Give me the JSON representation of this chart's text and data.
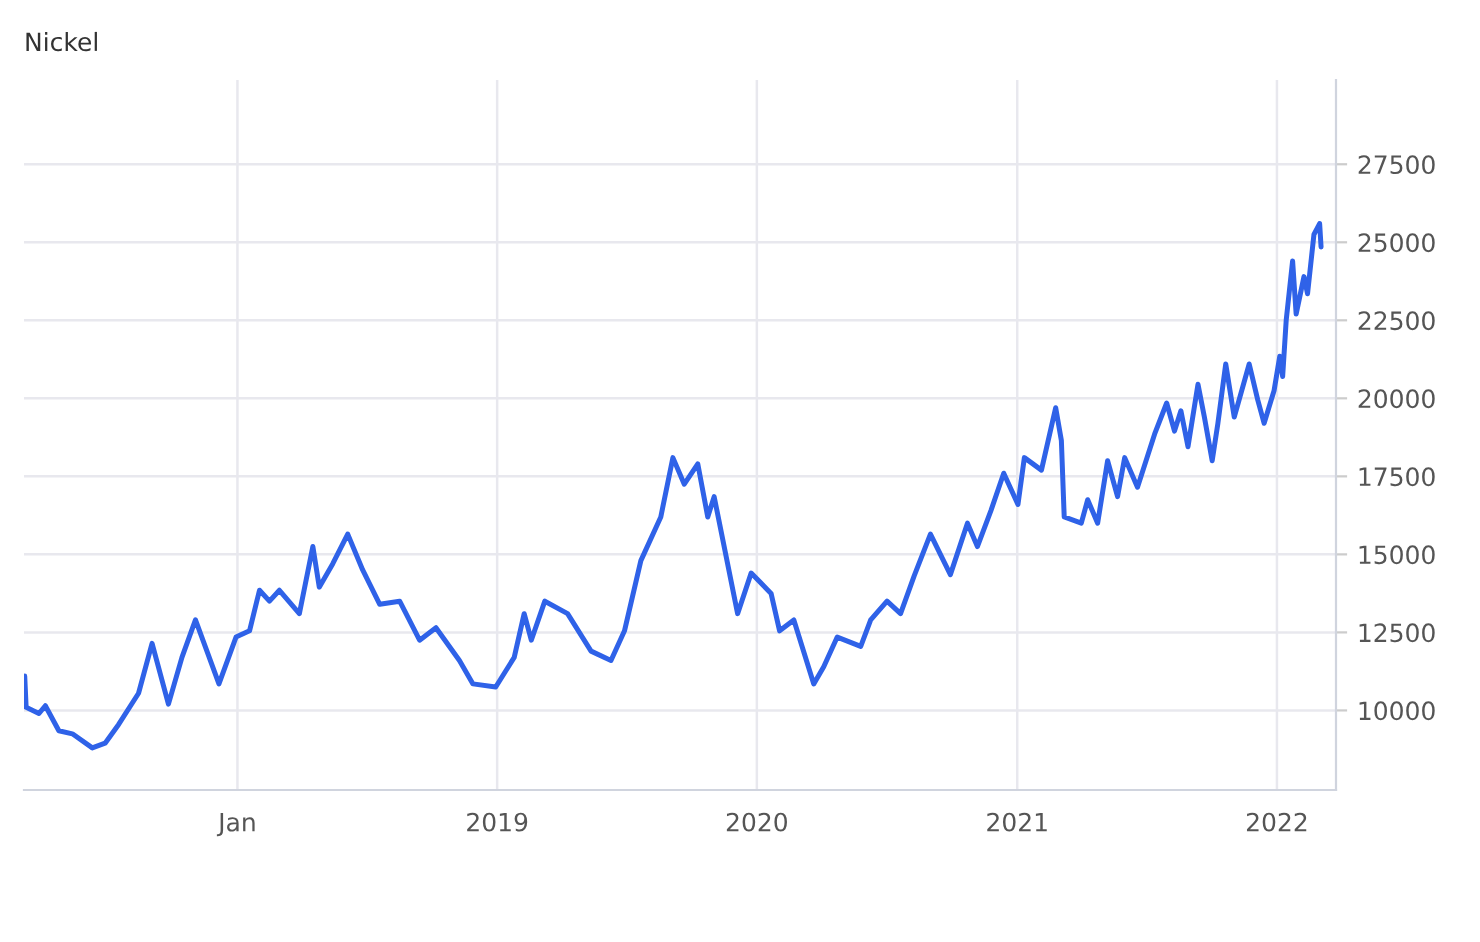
{
  "chart_data": {
    "type": "line",
    "title": "Nickel",
    "x": [
      "2017-03-08",
      "2017-03-10",
      "2017-03-28",
      "2017-04-06",
      "2017-04-25",
      "2017-05-14",
      "2017-06-11",
      "2017-06-29",
      "2017-07-18",
      "2017-08-15",
      "2017-09-03",
      "2017-09-26",
      "2017-10-15",
      "2017-11-03",
      "2017-12-06",
      "2017-12-30",
      "2018-01-18",
      "2018-02-01",
      "2018-02-15",
      "2018-03-01",
      "2018-03-29",
      "2018-04-17",
      "2018-04-26",
      "2018-05-15",
      "2018-06-05",
      "2018-06-26",
      "2018-07-20",
      "2018-08-17",
      "2018-09-14",
      "2018-10-07",
      "2018-11-09",
      "2018-11-28",
      "2018-12-30",
      "2019-01-25",
      "2019-02-08",
      "2019-02-18",
      "2019-03-09",
      "2019-04-10",
      "2019-05-13",
      "2019-06-10",
      "2019-06-29",
      "2019-07-22",
      "2019-08-19",
      "2019-09-05",
      "2019-09-21",
      "2019-10-10",
      "2019-10-24",
      "2019-11-02",
      "2019-12-05",
      "2019-12-24",
      "2020-01-21",
      "2020-02-02",
      "2020-02-22",
      "2020-03-21",
      "2020-04-04",
      "2020-04-23",
      "2020-05-26",
      "2020-06-09",
      "2020-07-02",
      "2020-07-21",
      "2020-08-09",
      "2020-09-01",
      "2020-09-29",
      "2020-10-23",
      "2020-11-06",
      "2020-11-25",
      "2020-12-13",
      "2021-01-02",
      "2021-01-11",
      "2021-02-04",
      "2021-02-24",
      "2021-03-04",
      "2021-03-08",
      "2021-04-01",
      "2021-04-10",
      "2021-04-24",
      "2021-05-08",
      "2021-05-22",
      "2021-06-01",
      "2021-06-19",
      "2021-07-13",
      "2021-07-30",
      "2021-08-10",
      "2021-08-19",
      "2021-08-29",
      "2021-09-12",
      "2021-09-21",
      "2021-10-02",
      "2021-10-10",
      "2021-10-21",
      "2021-11-02",
      "2021-11-23",
      "2021-12-05",
      "2021-12-14",
      "2021-12-28",
      "2022-01-05",
      "2022-01-09",
      "2022-01-14",
      "2022-01-23",
      "2022-01-28",
      "2022-02-08",
      "2022-02-13",
      "2022-02-22",
      "2022-03-02",
      "2022-03-04"
    ],
    "series": [
      {
        "color": "#2f62e8",
        "values": [
          11100,
          10100,
          9900,
          10150,
          9350,
          9250,
          8800,
          8950,
          9550,
          10550,
          12150,
          10200,
          11700,
          12900,
          10850,
          12350,
          12550,
          13850,
          13500,
          13850,
          13100,
          15250,
          13950,
          14700,
          15650,
          14500,
          13400,
          13500,
          12250,
          12650,
          11600,
          10850,
          10750,
          11700,
          13100,
          12250,
          13500,
          13100,
          11900,
          11600,
          12550,
          14800,
          16200,
          18100,
          17250,
          17900,
          16200,
          16850,
          13100,
          14400,
          13750,
          12550,
          12900,
          10850,
          11400,
          12350,
          12050,
          12900,
          13500,
          13100,
          14300,
          15650,
          14350,
          16000,
          15250,
          16400,
          17600,
          16600,
          18100,
          17700,
          19700,
          18650,
          16200,
          16000,
          16750,
          16000,
          18000,
          16850,
          18100,
          17150,
          18850,
          19850,
          18950,
          19600,
          18450,
          20450,
          19400,
          18000,
          19200,
          21100,
          19400,
          21100,
          19950,
          19200,
          20250,
          21350,
          20700,
          22500,
          24400,
          22700,
          23900,
          23350,
          25250,
          25600,
          24850
        ]
      }
    ],
    "xlim": [
      "2017-03-07",
      "2022-03-25"
    ],
    "xticks": [
      {
        "value": "2018-01-01",
        "label": "Jan"
      },
      {
        "value": "2019-01-01",
        "label": "2019"
      },
      {
        "value": "2020-01-01",
        "label": "2020"
      },
      {
        "value": "2021-01-01",
        "label": "2021"
      },
      {
        "value": "2022-01-01",
        "label": "2022"
      }
    ],
    "ylim": [
      7450,
      30200
    ],
    "yticks": [
      10000,
      12500,
      15000,
      17500,
      20000,
      22500,
      25000,
      27500
    ],
    "grid": true,
    "legend": false
  }
}
